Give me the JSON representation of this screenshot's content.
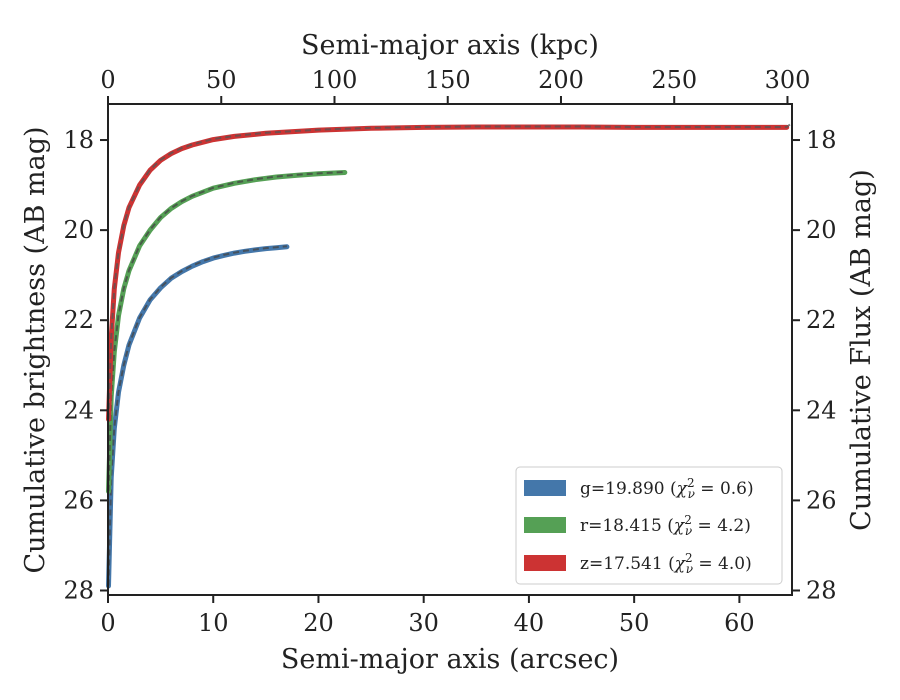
{
  "chart_data": {
    "type": "line",
    "xlabel_bottom": "Semi-major axis (arcsec)",
    "xlabel_top": "Semi-major axis (kpc)",
    "ylabel_left": "Cumulative brightness (AB mag)",
    "ylabel_right": "Cumulative Flux (AB mag)",
    "xlim": [
      0,
      65
    ],
    "xlim_top": [
      0,
      302
    ],
    "ylim": [
      28.1,
      17.2
    ],
    "y_inverted": true,
    "xticks_bottom": [
      0,
      10,
      20,
      30,
      40,
      50,
      60
    ],
    "xticks_top": [
      0,
      50,
      100,
      150,
      200,
      250,
      300
    ],
    "yticks": [
      18,
      20,
      22,
      24,
      26,
      28
    ],
    "legend_position": "lower right",
    "series": [
      {
        "name": "g",
        "legend_label": "g=19.890 (χ²ν = 0.6)",
        "color": "#4477aa",
        "x": [
          0.05,
          0.3,
          0.6,
          1,
          1.5,
          2,
          3,
          4,
          5,
          6,
          7,
          8,
          9,
          10,
          11,
          12,
          13,
          14,
          15,
          16,
          17
        ],
        "y": [
          27.9,
          25.5,
          24.4,
          23.6,
          23.0,
          22.55,
          21.95,
          21.55,
          21.28,
          21.07,
          20.92,
          20.8,
          20.7,
          20.62,
          20.56,
          20.51,
          20.47,
          20.44,
          20.41,
          20.39,
          20.37
        ]
      },
      {
        "name": "r",
        "legend_label": "r=18.415 (χ²ν = 4.2)",
        "color": "#55a055",
        "x": [
          0.05,
          0.3,
          0.6,
          1,
          1.5,
          2,
          3,
          4,
          5,
          6,
          7,
          8,
          10,
          12,
          14,
          16,
          18,
          20,
          22.5
        ],
        "y": [
          25.8,
          23.7,
          22.7,
          21.9,
          21.3,
          20.9,
          20.35,
          20.0,
          19.72,
          19.52,
          19.37,
          19.25,
          19.07,
          18.96,
          18.88,
          18.82,
          18.78,
          18.75,
          18.72
        ]
      },
      {
        "name": "z",
        "legend_label": "z=17.541 (χ²ν = 4.0)",
        "color": "#cc3333",
        "x": [
          0.05,
          0.3,
          0.6,
          1,
          1.5,
          2,
          3,
          4,
          5,
          6,
          7,
          8,
          10,
          12,
          15,
          20,
          25,
          30,
          35,
          40,
          45,
          50,
          55,
          60,
          64.5
        ],
        "y": [
          24.2,
          22.4,
          21.3,
          20.5,
          19.9,
          19.5,
          19.0,
          18.67,
          18.45,
          18.3,
          18.19,
          18.11,
          17.99,
          17.92,
          17.85,
          17.78,
          17.74,
          17.72,
          17.71,
          17.71,
          17.71,
          17.72,
          17.72,
          17.72,
          17.72
        ]
      }
    ]
  },
  "legend": {
    "g": {
      "prefix": "g=19.890 (",
      "chi": "χ",
      "sup": "2",
      "sub": "ν",
      "suffix": " = 0.6)"
    },
    "r": {
      "prefix": "r=18.415 (",
      "chi": "χ",
      "sup": "2",
      "sub": "ν",
      "suffix": " = 4.2)"
    },
    "z": {
      "prefix": "z=17.541 (",
      "chi": "χ",
      "sup": "2",
      "sub": "ν",
      "suffix": " = 4.0)"
    }
  }
}
